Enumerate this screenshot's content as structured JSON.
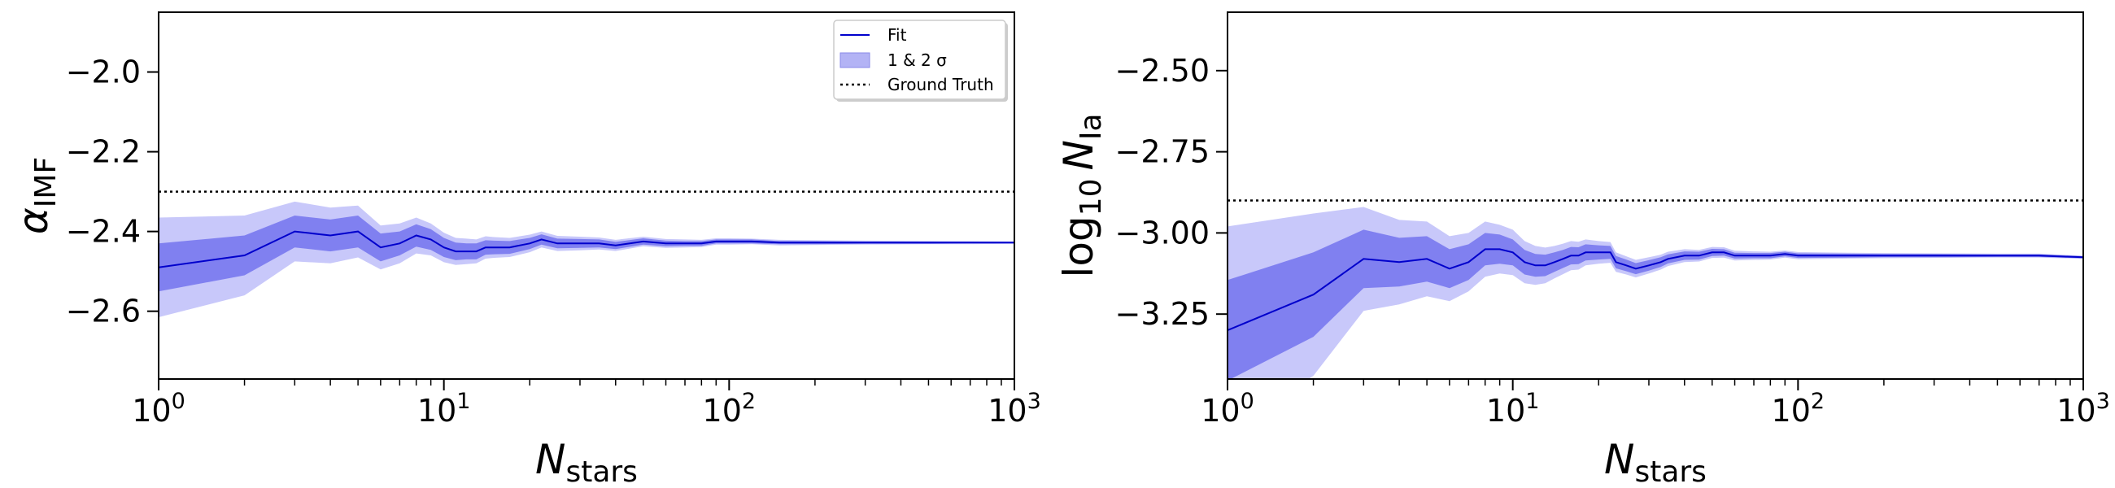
{
  "chart_data": [
    {
      "type": "line",
      "xscale": "log",
      "xlim": [
        1,
        1000
      ],
      "ylim": [
        -2.77,
        -1.85
      ],
      "xticks": [
        1,
        10,
        100,
        1000
      ],
      "xtick_labels": [
        {
          "base": "10",
          "exp": "0"
        },
        {
          "base": "10",
          "exp": "1"
        },
        {
          "base": "10",
          "exp": "2"
        },
        {
          "base": "10",
          "exp": "3"
        }
      ],
      "yticks": [
        -2.0,
        -2.2,
        -2.4,
        -2.6
      ],
      "ytick_labels": [
        "−2.0",
        "−2.2",
        "−2.4",
        "−2.6"
      ],
      "xlabel": {
        "main": "N",
        "sub": "stars"
      },
      "ylabel": {
        "main": "α",
        "sub": "IMF"
      },
      "ground_truth": -2.3,
      "legend": {
        "placement": "top-right",
        "entries": [
          {
            "label": "Fit",
            "style": "line"
          },
          {
            "label": "1 & 2 σ",
            "style": "band"
          },
          {
            "label": "Ground Truth",
            "style": "dotted"
          }
        ]
      },
      "series": [
        {
          "name": "Fit",
          "x": [
            1,
            2,
            3,
            4,
            5,
            6,
            7,
            8,
            9,
            10,
            11,
            12,
            13,
            14,
            15,
            17,
            20,
            22,
            25,
            30,
            35,
            40,
            50,
            60,
            70,
            80,
            90,
            100,
            120,
            150,
            200,
            300,
            500,
            700,
            1000
          ],
          "y": [
            -2.49,
            -2.46,
            -2.4,
            -2.41,
            -2.4,
            -2.44,
            -2.43,
            -2.41,
            -2.42,
            -2.44,
            -2.45,
            -2.45,
            -2.45,
            -2.44,
            -2.44,
            -2.44,
            -2.43,
            -2.42,
            -2.43,
            -2.43,
            -2.43,
            -2.435,
            -2.425,
            -2.43,
            -2.43,
            -2.43,
            -2.425,
            -2.425,
            -2.425,
            -2.428,
            -2.428,
            -2.428,
            -2.428,
            -2.428,
            -2.428
          ],
          "band1": [
            0.06,
            0.05,
            0.04,
            0.04,
            0.04,
            0.035,
            0.03,
            0.028,
            0.026,
            0.024,
            0.022,
            0.02,
            0.02,
            0.018,
            0.017,
            0.016,
            0.014,
            0.013,
            0.012,
            0.011,
            0.01,
            0.009,
            0.008,
            0.007,
            0.006,
            0.006,
            0.005,
            0.005,
            0.005,
            0.004,
            0.004,
            0.003,
            0.003,
            0.002,
            0.002
          ],
          "band2": [
            0.125,
            0.1,
            0.075,
            0.07,
            0.065,
            0.055,
            0.05,
            0.045,
            0.04,
            0.037,
            0.034,
            0.032,
            0.03,
            0.028,
            0.026,
            0.024,
            0.022,
            0.02,
            0.019,
            0.017,
            0.015,
            0.014,
            0.012,
            0.011,
            0.01,
            0.009,
            0.008,
            0.008,
            0.007,
            0.007,
            0.006,
            0.005,
            0.004,
            0.004,
            0.003
          ]
        }
      ]
    },
    {
      "type": "line",
      "xscale": "log",
      "xlim": [
        1,
        1000
      ],
      "ylim": [
        -3.45,
        -2.32
      ],
      "xticks": [
        1,
        10,
        100,
        1000
      ],
      "xtick_labels": [
        {
          "base": "10",
          "exp": "0"
        },
        {
          "base": "10",
          "exp": "1"
        },
        {
          "base": "10",
          "exp": "2"
        },
        {
          "base": "10",
          "exp": "3"
        }
      ],
      "yticks": [
        -2.5,
        -2.75,
        -3.0,
        -3.25
      ],
      "ytick_labels": [
        "−2.50",
        "−2.75",
        "−3.00",
        "−3.25"
      ],
      "xlabel": {
        "main": "N",
        "sub": "stars"
      },
      "ylabel": {
        "pre": "log",
        "presub": "10",
        "main": "N",
        "sub": "Ia"
      },
      "ground_truth": -2.9,
      "series": [
        {
          "name": "Fit",
          "x": [
            1,
            2,
            3,
            4,
            5,
            6,
            7,
            8,
            9,
            10,
            11,
            12,
            13,
            14,
            15,
            16,
            17,
            18,
            20,
            22,
            23,
            25,
            27,
            30,
            33,
            35,
            40,
            45,
            50,
            55,
            60,
            70,
            80,
            90,
            100,
            150,
            200,
            300,
            500,
            700,
            1000
          ],
          "y": [
            -3.3,
            -3.19,
            -3.08,
            -3.09,
            -3.08,
            -3.11,
            -3.09,
            -3.05,
            -3.05,
            -3.06,
            -3.09,
            -3.1,
            -3.1,
            -3.09,
            -3.08,
            -3.07,
            -3.07,
            -3.06,
            -3.06,
            -3.06,
            -3.09,
            -3.1,
            -3.11,
            -3.1,
            -3.09,
            -3.08,
            -3.07,
            -3.07,
            -3.06,
            -3.06,
            -3.07,
            -3.07,
            -3.07,
            -3.065,
            -3.07,
            -3.07,
            -3.07,
            -3.07,
            -3.07,
            -3.07,
            -3.075
          ],
          "band1": [
            0.155,
            0.13,
            0.09,
            0.075,
            0.07,
            0.06,
            0.055,
            0.05,
            0.045,
            0.04,
            0.038,
            0.035,
            0.033,
            0.03,
            0.028,
            0.027,
            0.026,
            0.025,
            0.022,
            0.02,
            0.019,
            0.018,
            0.017,
            0.016,
            0.015,
            0.014,
            0.013,
            0.012,
            0.011,
            0.01,
            0.009,
            0.008,
            0.008,
            0.007,
            0.007,
            0.006,
            0.005,
            0.005,
            0.004,
            0.004,
            0.003
          ],
          "band2": [
            0.32,
            0.25,
            0.16,
            0.13,
            0.115,
            0.1,
            0.09,
            0.085,
            0.075,
            0.07,
            0.065,
            0.06,
            0.055,
            0.05,
            0.047,
            0.045,
            0.043,
            0.04,
            0.035,
            0.032,
            0.03,
            0.028,
            0.027,
            0.025,
            0.023,
            0.022,
            0.02,
            0.018,
            0.017,
            0.016,
            0.015,
            0.013,
            0.012,
            0.011,
            0.011,
            0.009,
            0.008,
            0.007,
            0.006,
            0.006,
            0.005
          ]
        }
      ]
    }
  ],
  "colors": {
    "line": "#0000cc",
    "band1": "#8080f0",
    "band2": "#c8c8fa",
    "truth": "#000000"
  }
}
